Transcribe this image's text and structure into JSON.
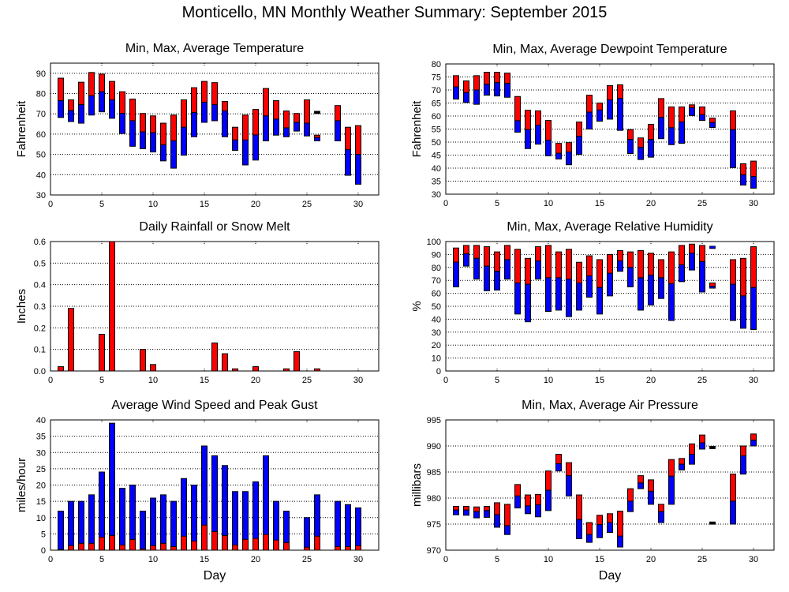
{
  "title": "Monticello, MN Monthly Weather Summary: September 2015",
  "colors": {
    "max_segment": "#ff0000",
    "avg_segment": "#0000ff",
    "outline": "#000000",
    "grid": "#000000"
  },
  "chart_data": [
    {
      "id": "temperature",
      "type": "bar",
      "subtype": "floating-range (min/avg/max)",
      "title": "Min, Max, Average Temperature",
      "xlabel": "",
      "ylabel": "Fahrenheit",
      "xlim": [
        0,
        32
      ],
      "ylim": [
        30,
        95
      ],
      "xticks": [
        0,
        5,
        10,
        15,
        20,
        25,
        30
      ],
      "yticks": [
        30,
        40,
        50,
        60,
        70,
        80,
        90
      ],
      "grid": true,
      "days": [
        1,
        2,
        3,
        4,
        5,
        6,
        7,
        8,
        9,
        10,
        11,
        12,
        13,
        14,
        15,
        16,
        17,
        18,
        19,
        20,
        21,
        22,
        23,
        24,
        25,
        26,
        28,
        29,
        30
      ],
      "max": [
        87.6,
        76.9,
        85.6,
        90.4,
        89.6,
        86.0,
        80.9,
        77.3,
        70.2,
        69.0,
        65.4,
        69.4,
        76.9,
        82.9,
        86.0,
        85.4,
        76.1,
        63.4,
        69.4,
        72.2,
        82.5,
        76.5,
        71.4,
        70.2,
        76.9,
        59.5,
        74.1,
        63.4,
        64.2
      ],
      "avg": [
        76.5,
        71.6,
        74.5,
        78.9,
        80.9,
        76.9,
        70.2,
        66.6,
        61.1,
        60.7,
        54.7,
        56.7,
        63.4,
        70.6,
        75.7,
        74.5,
        71.4,
        57.1,
        57.1,
        59.6,
        69.0,
        67.4,
        63.1,
        65.8,
        65.4,
        58.3,
        66.6,
        52.4,
        50.0
      ],
      "min": [
        68.2,
        66.2,
        65.4,
        69.4,
        71.0,
        67.8,
        60.3,
        54.0,
        52.8,
        51.2,
        46.8,
        43.2,
        49.6,
        58.7,
        65.8,
        66.6,
        58.7,
        52.0,
        44.8,
        47.2,
        56.7,
        59.5,
        58.7,
        61.5,
        59.1,
        56.7,
        56.7,
        39.7,
        35.3
      ],
      "markers": [
        {
          "day": 26,
          "value": 70.7
        }
      ]
    },
    {
      "id": "dewpoint",
      "type": "bar",
      "subtype": "floating-range (min/avg/max)",
      "title": "Min, Max, Average Dewpoint Temperature",
      "xlabel": "",
      "ylabel": "Fahrenheit",
      "xlim": [
        0,
        32
      ],
      "ylim": [
        30,
        80
      ],
      "xticks": [
        0,
        5,
        10,
        15,
        20,
        25,
        30
      ],
      "yticks": [
        30,
        35,
        40,
        45,
        50,
        55,
        60,
        65,
        70,
        75,
        80
      ],
      "grid": true,
      "days": [
        1,
        2,
        3,
        4,
        5,
        6,
        7,
        8,
        9,
        10,
        11,
        12,
        13,
        14,
        15,
        16,
        17,
        18,
        19,
        20,
        21,
        22,
        23,
        24,
        25,
        26,
        28,
        29,
        30
      ],
      "max": [
        75.5,
        73.5,
        75.5,
        76.8,
        76.8,
        76.5,
        67.5,
        62.2,
        62.0,
        58.3,
        49.5,
        49.8,
        57.7,
        68.0,
        65.0,
        71.7,
        72.0,
        54.8,
        51.6,
        56.8,
        66.7,
        63.5,
        63.5,
        64.3,
        63.5,
        59.2,
        62.0,
        41.7,
        42.7
      ],
      "avg": [
        71.2,
        69.0,
        70.0,
        72.2,
        72.8,
        72.5,
        58.2,
        54.8,
        56.5,
        50.7,
        45.7,
        46.2,
        52.2,
        61.5,
        62.3,
        66.2,
        66.8,
        51.0,
        48.0,
        51.0,
        59.5,
        55.5,
        57.7,
        63.2,
        60.5,
        57.5,
        54.8,
        37.4,
        36.8
      ],
      "min": [
        66.5,
        65.2,
        64.5,
        68.0,
        67.7,
        67.2,
        53.8,
        47.5,
        49.2,
        44.7,
        43.5,
        41.3,
        45.3,
        55.0,
        58.0,
        58.8,
        54.5,
        45.6,
        43.3,
        44.2,
        51.3,
        49.0,
        49.5,
        60.2,
        58.3,
        55.6,
        40.2,
        33.5,
        32.3
      ],
      "markers": []
    },
    {
      "id": "rainfall",
      "type": "bar",
      "title": "Daily Rainfall or Snow Melt",
      "xlabel": "",
      "ylabel": "Inches",
      "xlim": [
        0,
        32
      ],
      "ylim": [
        0,
        0.6
      ],
      "xticks": [
        0,
        5,
        10,
        15,
        20,
        25,
        30
      ],
      "yticks": [
        0.0,
        0.1,
        0.2,
        0.3,
        0.4,
        0.5,
        0.6
      ],
      "ytick_labels": [
        "0.0",
        "0.1",
        "0.2",
        "0.3",
        "0.4",
        "0.5",
        "0.6"
      ],
      "grid": true,
      "days": [
        1,
        2,
        5,
        6,
        9,
        10,
        16,
        17,
        18,
        20,
        23,
        24,
        26
      ],
      "values": [
        0.02,
        0.29,
        0.17,
        0.6,
        0.1,
        0.03,
        0.13,
        0.08,
        0.01,
        0.02,
        0.01,
        0.09,
        0.01
      ]
    },
    {
      "id": "humidity",
      "type": "bar",
      "subtype": "floating-range (min/avg/max)",
      "title": "Min, Max, Average Relative Humidity",
      "xlabel": "",
      "ylabel": "%",
      "xlim": [
        0,
        32
      ],
      "ylim": [
        0,
        100
      ],
      "xticks": [
        0,
        5,
        10,
        15,
        20,
        25,
        30
      ],
      "yticks": [
        0,
        10,
        20,
        30,
        40,
        50,
        60,
        70,
        80,
        90,
        100
      ],
      "grid": true,
      "days": [
        1,
        2,
        3,
        4,
        5,
        6,
        7,
        8,
        9,
        10,
        11,
        12,
        13,
        14,
        15,
        16,
        17,
        18,
        19,
        20,
        21,
        22,
        23,
        24,
        25,
        26,
        28,
        29,
        30
      ],
      "max": [
        95,
        97,
        97,
        96,
        92,
        97,
        94,
        87,
        96,
        97,
        92,
        94,
        84,
        89,
        86,
        90,
        93,
        92,
        93,
        91,
        86,
        92,
        97,
        98,
        97,
        68,
        86,
        87,
        96
      ],
      "avg": [
        84,
        90.5,
        87,
        81,
        77,
        86,
        68,
        67,
        85,
        72,
        72,
        71,
        68,
        73.5,
        64.5,
        75.5,
        85,
        80,
        72,
        74,
        72,
        67.5,
        82,
        91,
        84.5,
        65.5,
        67,
        58,
        64.5
      ],
      "min": [
        65,
        81,
        71,
        62,
        62.5,
        71,
        44,
        38,
        71,
        46,
        47,
        42,
        47,
        57,
        44,
        58,
        77,
        65,
        47,
        51,
        56,
        39,
        69,
        78,
        61,
        64,
        39,
        33,
        32
      ],
      "markers": [
        {
          "day": 26,
          "value": 95.5,
          "color": "#0000ff"
        }
      ]
    },
    {
      "id": "wind",
      "type": "bar",
      "subtype": "overlaid (gust behind average)",
      "title": "Average Wind Speed and Peak Gust",
      "xlabel": "Day",
      "ylabel": "miles/hour",
      "xlim": [
        0,
        32
      ],
      "ylim": [
        0,
        40
      ],
      "xticks": [
        0,
        5,
        10,
        15,
        20,
        25,
        30
      ],
      "yticks": [
        0,
        5,
        10,
        15,
        20,
        25,
        30,
        35,
        40
      ],
      "grid": true,
      "days": [
        1,
        2,
        3,
        4,
        5,
        6,
        7,
        8,
        9,
        10,
        11,
        12,
        13,
        14,
        15,
        16,
        17,
        18,
        19,
        20,
        21,
        22,
        23,
        25,
        26,
        28,
        29,
        30
      ],
      "series": [
        {
          "name": "Peak Gust",
          "color": "#0000ff",
          "values": [
            12,
            15,
            15,
            17,
            24,
            39,
            19,
            20,
            12,
            16,
            17,
            15,
            22,
            20,
            32,
            29,
            26,
            18,
            18,
            21,
            29,
            15,
            12,
            10,
            17,
            15,
            14,
            13
          ]
        },
        {
          "name": "Average Wind Speed",
          "color": "#ff0000",
          "values": [
            0.2,
            1.4,
            2.1,
            2.1,
            4.0,
            4.5,
            1.6,
            3.3,
            0.4,
            1.4,
            2.1,
            1.1,
            4.3,
            2.8,
            7.7,
            5.7,
            4.5,
            1.6,
            3.3,
            3.6,
            4.8,
            3.1,
            2.3,
            0.9,
            4.3,
            1.1,
            1.1,
            1.4
          ]
        }
      ]
    },
    {
      "id": "pressure",
      "type": "bar",
      "subtype": "floating-range (min/avg/max)",
      "title": "Min, Max, Average Air Pressure",
      "xlabel": "Day",
      "ylabel": "millibars",
      "xlim": [
        0,
        32
      ],
      "ylim": [
        970,
        995
      ],
      "xticks": [
        0,
        5,
        10,
        15,
        20,
        25,
        30
      ],
      "yticks": [
        970,
        975,
        980,
        985,
        990,
        995
      ],
      "grid": true,
      "days": [
        1,
        2,
        3,
        4,
        5,
        6,
        7,
        8,
        9,
        10,
        11,
        12,
        13,
        14,
        15,
        16,
        17,
        18,
        19,
        20,
        21,
        22,
        23,
        24,
        25,
        28,
        29,
        30
      ],
      "max": [
        978.4,
        978.4,
        978.3,
        978.4,
        979.1,
        978.8,
        982.6,
        980.6,
        980.7,
        985.2,
        988.4,
        986.8,
        980.6,
        975.3,
        976.7,
        977.0,
        977.5,
        981.8,
        984.3,
        983.5,
        978.8,
        987.4,
        987.6,
        990.4,
        992.1,
        984.6,
        990.0,
        992.3
      ],
      "avg": [
        977.7,
        977.7,
        977.4,
        977.6,
        976.8,
        974.7,
        980.4,
        978.5,
        978.7,
        981.5,
        986.6,
        984.3,
        975.9,
        973.0,
        974.9,
        975.3,
        972.7,
        979.4,
        982.9,
        981.3,
        977.4,
        984.2,
        986.5,
        988.4,
        990.6,
        979.4,
        988.1,
        991.1
      ],
      "min": [
        976.8,
        976.7,
        976.2,
        976.3,
        974.4,
        973.0,
        978.1,
        977.0,
        976.4,
        977.6,
        985.2,
        980.4,
        972.2,
        971.5,
        972.4,
        973.4,
        970.6,
        977.4,
        981.8,
        978.8,
        975.3,
        978.8,
        985.4,
        986.5,
        989.4,
        975.0,
        984.6,
        990.0
      ],
      "markers": [
        {
          "day": 26,
          "value": 989.7
        },
        {
          "day": 26,
          "value": 975.2
        }
      ]
    }
  ]
}
